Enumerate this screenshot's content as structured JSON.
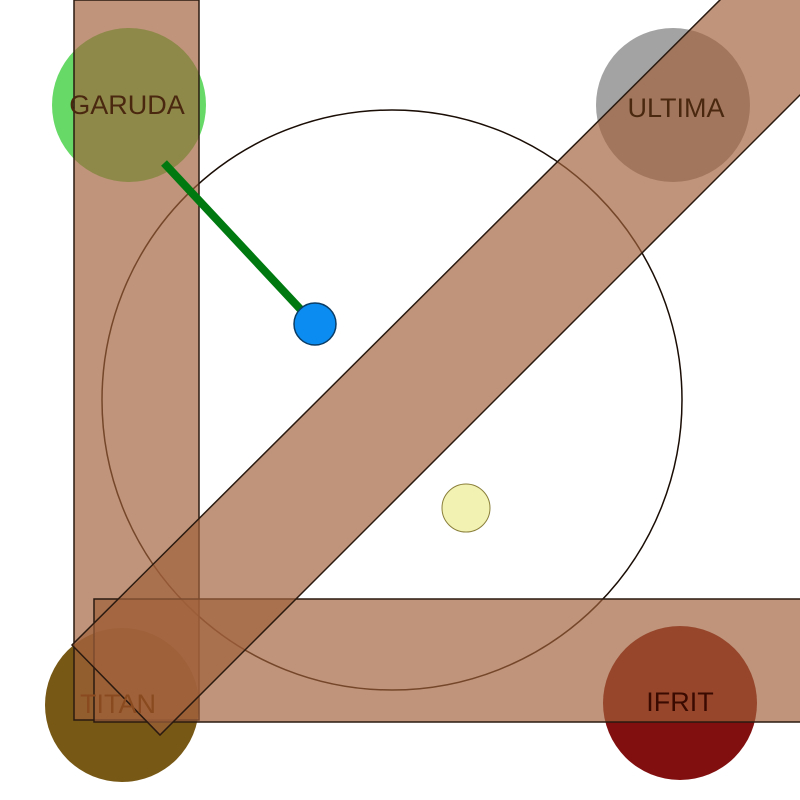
{
  "arena": {
    "background": "#ffffff",
    "ring_color": "#1a0d05"
  },
  "bosses": [
    {
      "key": "garuda",
      "label": "GARUDA",
      "color": "#3cce3c",
      "opacity": 0.78
    },
    {
      "key": "ultima",
      "label": "ULTIMA",
      "color": "#7f7f7f",
      "opacity": 0.78
    },
    {
      "key": "titan",
      "label": "TITAN",
      "color": "#6b4a00",
      "opacity": 0.88
    },
    {
      "key": "ifrit",
      "label": "IFRIT",
      "color": "#7a0000",
      "opacity": 0.92
    }
  ],
  "aoe": {
    "color": "#a0623b",
    "bands": [
      "left-vertical",
      "bottom-horizontal",
      "diagonal"
    ]
  },
  "player": {
    "color": "#0a8cf0"
  },
  "target_marker": {
    "color": "#f2f2b2"
  },
  "tether": {
    "color": "#007a10"
  }
}
